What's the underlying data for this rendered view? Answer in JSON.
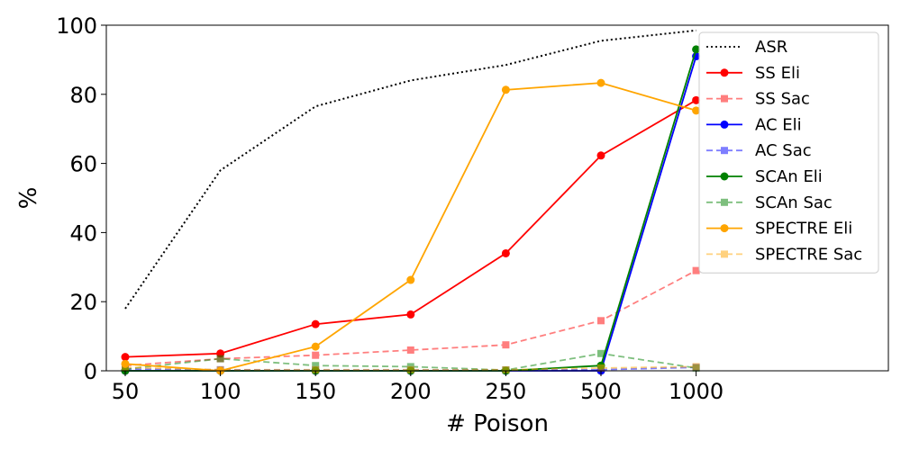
{
  "chart_data": {
    "type": "line",
    "title": "",
    "xlabel": "# Poison",
    "ylabel": "%",
    "categories": [
      "50",
      "100",
      "150",
      "200",
      "250",
      "500",
      "1000"
    ],
    "ylim": [
      0,
      100
    ],
    "y_ticks": [
      0,
      20,
      40,
      60,
      80,
      100
    ],
    "grid": false,
    "legend_position": "top-right",
    "series": [
      {
        "name": "ASR",
        "color": "#000000",
        "dash": "dotted",
        "marker": "none",
        "alpha": 1,
        "values": [
          18,
          58,
          76.5,
          84,
          88.5,
          95.5,
          98.5
        ]
      },
      {
        "name": "SS Eli",
        "color": "#ff0000",
        "dash": "solid",
        "marker": "circle",
        "alpha": 1,
        "values": [
          4,
          5,
          13.5,
          16.3,
          34,
          62.3,
          78.3
        ]
      },
      {
        "name": "SS Sac",
        "color": "#ff0000",
        "dash": "dashed",
        "marker": "square",
        "alpha": 0.5,
        "values": [
          1.5,
          3.5,
          4.5,
          6,
          7.5,
          14.5,
          29
        ]
      },
      {
        "name": "AC Eli",
        "color": "#0000ff",
        "dash": "solid",
        "marker": "circle",
        "alpha": 1,
        "values": [
          0,
          0,
          0,
          0,
          0,
          0,
          91
        ]
      },
      {
        "name": "AC Sac",
        "color": "#0000ff",
        "dash": "dashed",
        "marker": "square",
        "alpha": 0.5,
        "values": [
          0.5,
          0.3,
          0.2,
          0.2,
          0.2,
          0.3,
          1
        ]
      },
      {
        "name": "SCAn Eli",
        "color": "#008000",
        "dash": "solid",
        "marker": "circle",
        "alpha": 1,
        "values": [
          0,
          0,
          0,
          0,
          0,
          1.5,
          93
        ]
      },
      {
        "name": "SCAn Sac",
        "color": "#008000",
        "dash": "dashed",
        "marker": "square",
        "alpha": 0.5,
        "values": [
          0.5,
          3.5,
          1.5,
          1.2,
          0.2,
          5,
          0.8
        ]
      },
      {
        "name": "SPECTRE Eli",
        "color": "#ffa500",
        "dash": "solid",
        "marker": "circle",
        "alpha": 1,
        "values": [
          2,
          0,
          7,
          26.3,
          81.3,
          83.3,
          75.3
        ]
      },
      {
        "name": "SPECTRE Sac",
        "color": "#ffa500",
        "dash": "dashed",
        "marker": "square",
        "alpha": 0.5,
        "values": [
          1,
          0.3,
          0.3,
          0.3,
          0.3,
          0.8,
          1.2
        ]
      }
    ]
  }
}
